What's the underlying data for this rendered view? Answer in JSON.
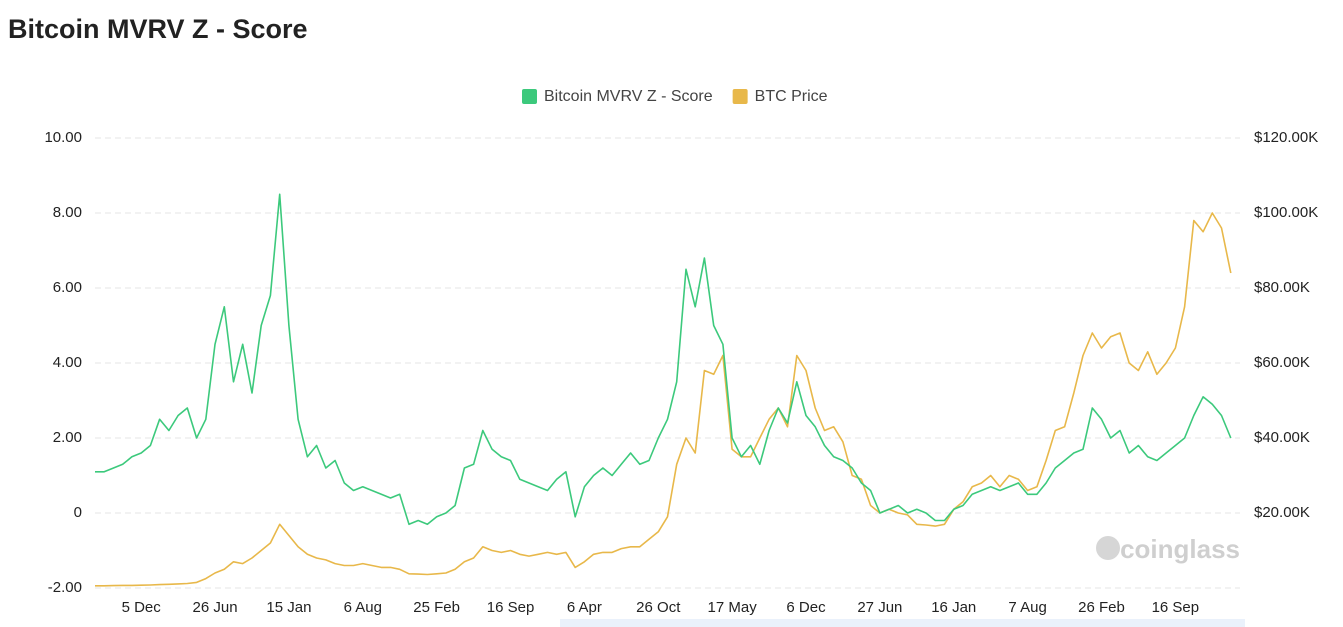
{
  "chart_data": {
    "type": "line",
    "title": "Bitcoin MVRV Z - Score",
    "watermark": "coinglass",
    "legend": "top",
    "grid": true,
    "categories": [
      null,
      null,
      null,
      null,
      null,
      "5 Dec",
      null,
      null,
      null,
      null,
      null,
      null,
      null,
      "26 Jun",
      null,
      null,
      null,
      null,
      null,
      null,
      null,
      "15 Jan",
      null,
      null,
      null,
      null,
      null,
      null,
      null,
      "6 Aug",
      null,
      null,
      null,
      null,
      null,
      null,
      null,
      "25 Feb",
      null,
      null,
      null,
      null,
      null,
      null,
      null,
      "16 Sep",
      null,
      null,
      null,
      null,
      null,
      null,
      null,
      "6 Apr",
      null,
      null,
      null,
      null,
      null,
      null,
      null,
      "26 Oct",
      null,
      null,
      null,
      null,
      null,
      null,
      null,
      "17 May",
      null,
      null,
      null,
      null,
      null,
      null,
      null,
      "6 Dec",
      null,
      null,
      null,
      null,
      null,
      null,
      null,
      "27 Jun",
      null,
      null,
      null,
      null,
      null,
      null,
      null,
      "16 Jan",
      null,
      null,
      null,
      null,
      null,
      null,
      null,
      "7 Aug",
      null,
      null,
      null,
      null,
      null,
      null,
      null,
      "26 Feb",
      null,
      null,
      null,
      null,
      null,
      null,
      null,
      "16 Sep",
      null,
      null,
      null,
      null,
      null,
      null
    ],
    "ylim": [
      -2,
      10
    ],
    "yticks": [
      {
        "value": -2,
        "label": "-2.00"
      },
      0,
      {
        "value": 2,
        "label": "2.00"
      },
      {
        "value": 4,
        "label": "4.00"
      },
      {
        "value": 6,
        "label": "6.00"
      },
      {
        "value": 8,
        "label": "8.00"
      },
      {
        "value": 10,
        "label": "10.00"
      }
    ],
    "y2lim": [
      0,
      120000
    ],
    "y2ticks": [
      {
        "value": 20000,
        "label": "$20.00K"
      },
      {
        "value": 40000,
        "label": "$40.00K"
      },
      {
        "value": 60000,
        "label": "$60.00K"
      },
      {
        "value": 80000,
        "label": "$80.00K"
      },
      {
        "value": 100000,
        "label": "$100.00K"
      },
      {
        "value": 120000,
        "label": "$120.00K"
      }
    ],
    "series": [
      {
        "name": "Bitcoin MVRV Z - Score",
        "color": "#3cc97c",
        "values": [
          1.1,
          1.1,
          1.2,
          1.3,
          1.5,
          1.6,
          1.8,
          2.5,
          2.2,
          2.6,
          2.8,
          2.0,
          2.5,
          4.5,
          5.5,
          3.5,
          4.5,
          3.2,
          5.0,
          5.8,
          8.5,
          5.0,
          2.5,
          1.5,
          1.8,
          1.2,
          1.4,
          0.8,
          0.6,
          0.7,
          0.6,
          0.5,
          0.4,
          0.5,
          -0.3,
          -0.2,
          -0.3,
          -0.1,
          0.0,
          0.2,
          1.2,
          1.3,
          2.2,
          1.7,
          1.5,
          1.4,
          0.9,
          0.8,
          0.7,
          0.6,
          0.9,
          1.1,
          -0.1,
          0.7,
          1.0,
          1.2,
          1.0,
          1.3,
          1.6,
          1.3,
          1.4,
          2.0,
          2.5,
          3.5,
          6.5,
          5.5,
          6.8,
          5.0,
          4.5,
          2.0,
          1.5,
          1.8,
          1.3,
          2.2,
          2.8,
          2.4,
          3.5,
          2.6,
          2.3,
          1.8,
          1.5,
          1.4,
          1.2,
          0.8,
          0.6,
          0.0,
          0.1,
          0.2,
          0.0,
          0.1,
          0.0,
          -0.2,
          -0.2,
          0.1,
          0.2,
          0.5,
          0.6,
          0.7,
          0.6,
          0.7,
          0.8,
          0.5,
          0.5,
          0.8,
          1.2,
          1.4,
          1.6,
          1.7,
          2.8,
          2.5,
          2.0,
          2.2,
          1.6,
          1.8,
          1.5,
          1.4,
          1.6,
          1.8,
          2.0,
          2.6,
          3.1,
          2.9,
          2.6,
          2.0
        ]
      },
      {
        "name": "BTC Price",
        "color": "#e8b84a",
        "axis": "y2",
        "values": [
          600,
          600,
          650,
          700,
          700,
          750,
          800,
          900,
          1000,
          1100,
          1200,
          1500,
          2500,
          4000,
          5000,
          7000,
          6500,
          8000,
          10000,
          12000,
          17000,
          14000,
          11000,
          9000,
          8000,
          7500,
          6500,
          6000,
          6000,
          6500,
          6000,
          5500,
          5500,
          5000,
          3800,
          3700,
          3600,
          3800,
          4000,
          5000,
          7000,
          8000,
          11000,
          10000,
          9500,
          10000,
          9000,
          8500,
          9000,
          9500,
          9000,
          9500,
          5500,
          7000,
          9000,
          9500,
          9500,
          10500,
          11000,
          11000,
          13000,
          15000,
          19000,
          33000,
          40000,
          36000,
          58000,
          57000,
          62000,
          37000,
          35000,
          35000,
          40000,
          45000,
          48000,
          43000,
          62000,
          58000,
          48000,
          42000,
          43000,
          39000,
          30000,
          29000,
          22000,
          20000,
          21000,
          20000,
          19500,
          17000,
          16800,
          16500,
          17000,
          21000,
          23000,
          27000,
          28000,
          30000,
          27000,
          30000,
          29000,
          26000,
          27000,
          34000,
          42000,
          43000,
          52000,
          62000,
          68000,
          64000,
          67000,
          68000,
          60000,
          58000,
          63000,
          57000,
          60000,
          64000,
          75000,
          98000,
          95000,
          100000,
          96000,
          84000
        ]
      }
    ]
  }
}
